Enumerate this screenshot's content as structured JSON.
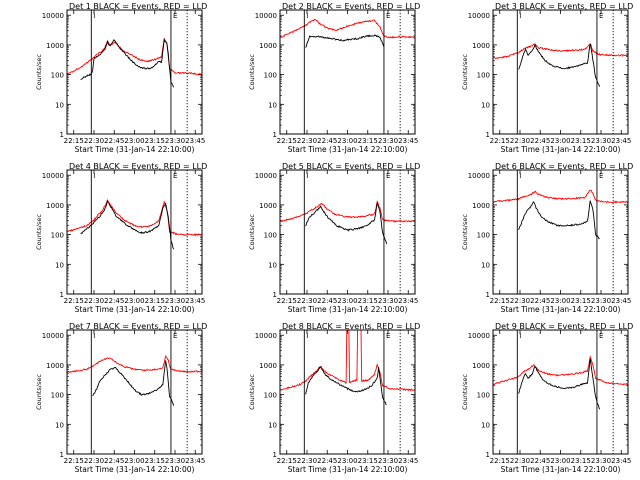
{
  "chart_data": [
    {
      "type": "line",
      "title": "Det 1 BLACK = Events, RED = LLD"
    },
    {
      "type": "line",
      "title": "Det 2 BLACK = Events, RED = LLD"
    },
    {
      "type": "line",
      "title": "Det 3 BLACK = Events, RED = LLD"
    },
    {
      "type": "line",
      "title": "Det 4 BLACK = Events, RED = LLD"
    },
    {
      "type": "line",
      "title": "Det 5 BLACK = Events, RED = LLD"
    },
    {
      "type": "line",
      "title": "Det 6 BLACK = Events, RED = LLD"
    },
    {
      "type": "line",
      "title": "Det 7 BLACK = Events, RED = LLD"
    },
    {
      "type": "line",
      "title": "Det 8 BLACK = Events, RED = LLD"
    },
    {
      "type": "line",
      "title": "Det 9 BLACK = Events, RED = LLD"
    }
  ],
  "shared": {
    "xlabel": "Start Time (31-Jan-14 22:10:00)",
    "ylabel": "Counts/sec",
    "x_ticks": [
      "22:15",
      "22:30",
      "22:45",
      "23:00",
      "23:15",
      "23:30",
      "23:45"
    ],
    "y_ticks": [
      "1",
      "10",
      "100",
      "1000",
      "10000"
    ],
    "y_scale": "log",
    "xlim": [
      "22:10",
      "23:50"
    ],
    "ylim": [
      1,
      15000
    ],
    "events_color": "#000000",
    "lld_color": "#ff0000",
    "vertical_markers": [
      {
        "time": "22:28",
        "style": "solid",
        "label": "I"
      },
      {
        "time": "23:27",
        "style": "solid",
        "label": "E"
      },
      {
        "time": "23:39",
        "style": "dotted",
        "label": ""
      }
    ]
  }
}
